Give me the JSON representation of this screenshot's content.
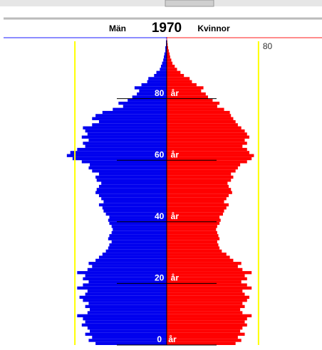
{
  "chart_data": {
    "type": "pyramid",
    "title": "1970",
    "left_label": "Män",
    "right_label": "Kvinnor",
    "y": [
      0,
      1,
      2,
      3,
      4,
      5,
      6,
      7,
      8,
      9,
      10,
      11,
      12,
      13,
      14,
      15,
      16,
      17,
      18,
      19,
      20,
      21,
      22,
      23,
      24,
      25,
      26,
      27,
      28,
      29,
      30,
      31,
      32,
      33,
      34,
      35,
      36,
      37,
      38,
      39,
      40,
      41,
      42,
      43,
      44,
      45,
      46,
      47,
      48,
      49,
      50,
      51,
      52,
      53,
      54,
      55,
      56,
      57,
      58,
      59,
      60,
      61,
      62,
      63,
      64,
      65,
      66,
      67,
      68,
      69,
      70,
      71,
      72,
      73,
      74,
      75,
      76,
      77,
      78,
      79,
      80,
      81,
      82,
      83,
      84,
      85,
      86,
      87,
      88,
      89,
      90,
      91,
      92,
      93,
      94,
      95,
      96,
      97,
      98,
      99
    ],
    "series": [
      {
        "name": "Män",
        "color": "#0000ee",
        "side": "left",
        "values": [
          62,
          68,
          65,
          71,
          67,
          69,
          74,
          71,
          73,
          78,
          69,
          67,
          71,
          68,
          73,
          76,
          71,
          69,
          78,
          73,
          68,
          73,
          71,
          78,
          69,
          65,
          68,
          62,
          59,
          56,
          53,
          51,
          50,
          48,
          51,
          50,
          48,
          47,
          48,
          50,
          51,
          50,
          53,
          55,
          56,
          59,
          55,
          57,
          59,
          62,
          61,
          59,
          57,
          61,
          62,
          59,
          65,
          68,
          67,
          74,
          82,
          87,
          84,
          78,
          71,
          73,
          68,
          74,
          69,
          71,
          73,
          65,
          59,
          65,
          62,
          56,
          47,
          38,
          42,
          34,
          30,
          26,
          24,
          28,
          22,
          17,
          16,
          11,
          9,
          6,
          5,
          4,
          3,
          2.5,
          2,
          1.2,
          1.2,
          0.6,
          0.6,
          0.3
        ]
      },
      {
        "name": "Kvinnor",
        "color": "#ff0000",
        "side": "right",
        "values": [
          60,
          65,
          62,
          68,
          64,
          66,
          70,
          68,
          70,
          74,
          66,
          64,
          68,
          66,
          70,
          72,
          68,
          66,
          74,
          70,
          65,
          70,
          68,
          74,
          66,
          62,
          65,
          58,
          55,
          52,
          48,
          46,
          45,
          44,
          46,
          45,
          44,
          43,
          44,
          46,
          47,
          46,
          49,
          50,
          52,
          54,
          50,
          52,
          54,
          57,
          56,
          54,
          53,
          56,
          58,
          56,
          60,
          62,
          64,
          70,
          74,
          76,
          72,
          70,
          66,
          70,
          68,
          72,
          70,
          68,
          65,
          62,
          60,
          58,
          56,
          55,
          50,
          44,
          46,
          40,
          36,
          34,
          30,
          32,
          26,
          22,
          20,
          15,
          12,
          9,
          7,
          5,
          4,
          3,
          2.5,
          1.8,
          1.2,
          0.8,
          0.5,
          0.3
        ]
      }
    ],
    "xlim": [
      0,
      90
    ],
    "xticks": [
      80
    ],
    "xtick_color": "#ffff00",
    "ylim": [
      0,
      100
    ],
    "yticks": [
      {
        "value": 0,
        "label": "0 år"
      },
      {
        "value": 20,
        "label": "20 år"
      },
      {
        "value": 40,
        "label": "40 år"
      },
      {
        "value": 60,
        "label": "60 år"
      },
      {
        "value": 80,
        "label": "80 år"
      }
    ]
  }
}
